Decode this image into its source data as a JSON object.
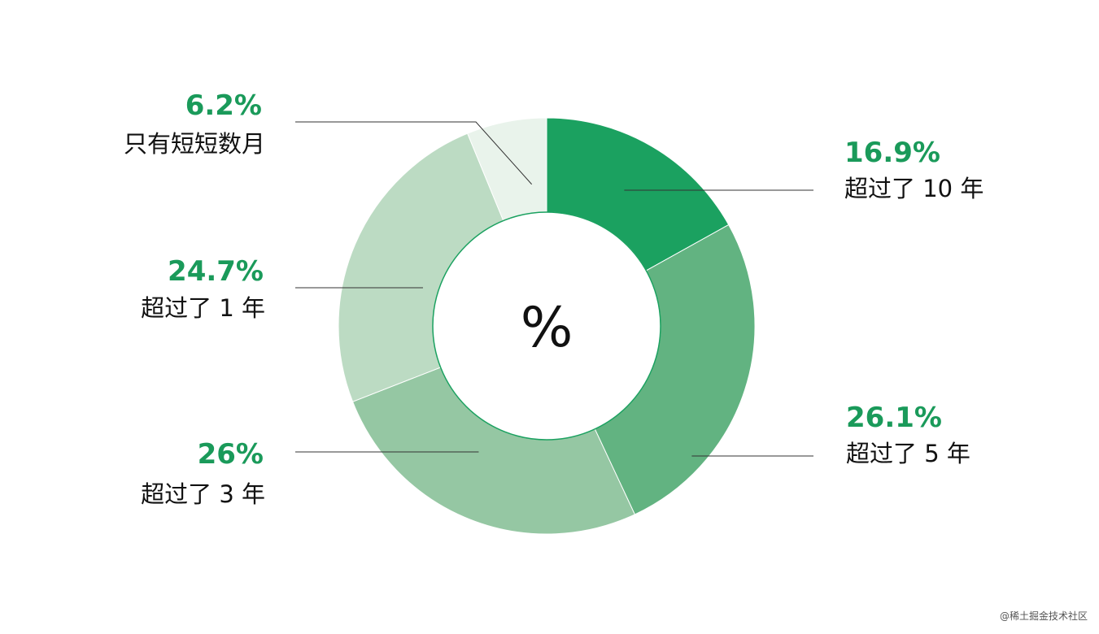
{
  "chart_data": {
    "type": "pie",
    "center_label": "%",
    "categories": [
      "超过了 10 年",
      "超过了 5 年",
      "超过了 3 年",
      "超过了 1 年",
      "只有短短数月"
    ],
    "values": [
      16.9,
      26.1,
      26,
      24.7,
      6.2
    ],
    "value_labels": [
      "16.9%",
      "26.1%",
      "26%",
      "24.7%",
      "6.2%"
    ],
    "colors": [
      "#1ba160",
      "#62b381",
      "#95c7a3",
      "#bcdbc3",
      "#e9f3eb"
    ],
    "label_color": "#1a9a5a",
    "legend": "callout labels"
  },
  "watermark": "@稀土掘金技术社区"
}
